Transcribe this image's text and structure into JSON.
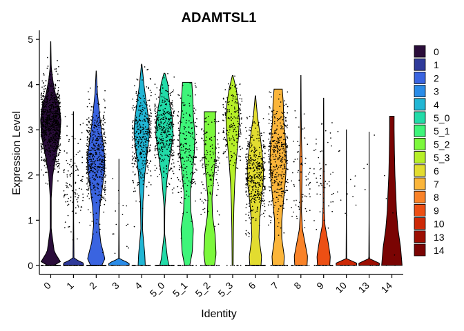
{
  "chart_data": {
    "type": "violin",
    "title": "ADAMTSL1",
    "xlabel": "Identity",
    "ylabel": "Expression Level",
    "ylim": [
      -0.2,
      5.2
    ],
    "yticks": [
      0,
      1,
      2,
      3,
      4,
      5
    ],
    "legend_position": "right",
    "show_points": true,
    "categories": [
      "0",
      "1",
      "2",
      "3",
      "4",
      "5_0",
      "5_1",
      "5_2",
      "5_3",
      "6",
      "7",
      "8",
      "9",
      "10",
      "13",
      "14"
    ],
    "colors": [
      "#2a0d3a",
      "#2f3a9a",
      "#3a64e0",
      "#2a8ce8",
      "#21b6d4",
      "#22dba8",
      "#3ef57a",
      "#7cf83c",
      "#b6ef28",
      "#e2dc30",
      "#fbb53a",
      "#f98228",
      "#ec4f14",
      "#cc2806",
      "#9c0e02",
      "#7a0403"
    ],
    "violins": [
      {
        "name": "0",
        "max": 4.95,
        "profile": [
          [
            0,
            0.3
          ],
          [
            0.08,
            0.95
          ],
          [
            0.3,
            0.35
          ],
          [
            0.8,
            0.05
          ],
          [
            1.5,
            0.05
          ],
          [
            2.0,
            0.2
          ],
          [
            2.4,
            0.5
          ],
          [
            2.8,
            0.85
          ],
          [
            3.2,
            1.0
          ],
          [
            3.5,
            0.85
          ],
          [
            3.8,
            0.45
          ],
          [
            4.1,
            0.2
          ],
          [
            4.4,
            0.05
          ],
          [
            4.95,
            0.01
          ]
        ],
        "n_points": 900,
        "point_mean": 3.15,
        "point_sd": 0.45,
        "zero_frac": 0.08
      },
      {
        "name": "1",
        "max": 3.4,
        "profile": [
          [
            0,
            1.0
          ],
          [
            0.05,
            1.0
          ],
          [
            0.15,
            0.05
          ],
          [
            1.0,
            0.02
          ],
          [
            2.0,
            0.02
          ],
          [
            3.4,
            0.01
          ]
        ],
        "n_points": 160,
        "point_mean": 1.9,
        "point_sd": 0.55,
        "zero_frac": 0.25
      },
      {
        "name": "2",
        "max": 4.3,
        "profile": [
          [
            0,
            0.55
          ],
          [
            0.15,
            0.85
          ],
          [
            0.5,
            0.45
          ],
          [
            0.9,
            0.25
          ],
          [
            1.3,
            0.35
          ],
          [
            1.8,
            0.65
          ],
          [
            2.2,
            0.85
          ],
          [
            2.6,
            0.75
          ],
          [
            3.0,
            0.5
          ],
          [
            3.4,
            0.3
          ],
          [
            3.8,
            0.12
          ],
          [
            4.3,
            0.01
          ]
        ],
        "n_points": 600,
        "point_mean": 2.35,
        "point_sd": 0.55,
        "zero_frac": 0.15
      },
      {
        "name": "3",
        "max": 2.35,
        "profile": [
          [
            0,
            1.0
          ],
          [
            0.05,
            1.0
          ],
          [
            0.15,
            0.03
          ],
          [
            1.0,
            0.01
          ],
          [
            2.35,
            0.005
          ]
        ],
        "n_points": 25,
        "point_mean": 1.1,
        "point_sd": 0.6,
        "zero_frac": 0.3
      },
      {
        "name": "4",
        "max": 4.45,
        "profile": [
          [
            0,
            0.35
          ],
          [
            0.25,
            0.3
          ],
          [
            0.8,
            0.08
          ],
          [
            1.4,
            0.12
          ],
          [
            2.0,
            0.3
          ],
          [
            2.5,
            0.55
          ],
          [
            2.9,
            0.75
          ],
          [
            3.2,
            0.7
          ],
          [
            3.6,
            0.45
          ],
          [
            4.0,
            0.22
          ],
          [
            4.45,
            0.02
          ]
        ],
        "n_points": 400,
        "point_mean": 2.85,
        "point_sd": 0.6,
        "zero_frac": 0.08
      },
      {
        "name": "5_0",
        "max": 4.25,
        "profile": [
          [
            0,
            0.45
          ],
          [
            0.15,
            0.3
          ],
          [
            0.7,
            0.02
          ],
          [
            1.3,
            0.04
          ],
          [
            1.9,
            0.25
          ],
          [
            2.4,
            0.55
          ],
          [
            2.9,
            0.85
          ],
          [
            3.3,
            0.75
          ],
          [
            3.7,
            0.45
          ],
          [
            4.0,
            0.35
          ],
          [
            4.25,
            0.05
          ]
        ],
        "n_points": 420,
        "point_mean": 3.0,
        "point_sd": 0.5,
        "zero_frac": 0.12
      },
      {
        "name": "5_1",
        "max": 4.05,
        "profile": [
          [
            0,
            0.25
          ],
          [
            0.3,
            0.5
          ],
          [
            0.8,
            0.6
          ],
          [
            1.2,
            0.35
          ],
          [
            1.6,
            0.3
          ],
          [
            2.0,
            0.5
          ],
          [
            2.5,
            0.7
          ],
          [
            2.9,
            0.75
          ],
          [
            3.3,
            0.6
          ],
          [
            3.7,
            0.55
          ],
          [
            4.05,
            0.45
          ]
        ],
        "n_points": 230,
        "point_mean": 2.6,
        "point_sd": 0.65,
        "zero_frac": 0.1
      },
      {
        "name": "5_2",
        "max": 3.4,
        "profile": [
          [
            0,
            0.45
          ],
          [
            0.25,
            0.6
          ],
          [
            0.7,
            0.5
          ],
          [
            1.1,
            0.25
          ],
          [
            1.5,
            0.2
          ],
          [
            2.0,
            0.4
          ],
          [
            2.4,
            0.55
          ],
          [
            2.8,
            0.55
          ],
          [
            3.1,
            0.55
          ],
          [
            3.4,
            0.55
          ]
        ],
        "n_points": 160,
        "point_mean": 2.3,
        "point_sd": 0.6,
        "zero_frac": 0.12
      },
      {
        "name": "5_3",
        "max": 4.2,
        "profile": [
          [
            0,
            0.05
          ],
          [
            0.3,
            0.06
          ],
          [
            0.8,
            0.08
          ],
          [
            1.3,
            0.12
          ],
          [
            1.8,
            0.2
          ],
          [
            2.3,
            0.35
          ],
          [
            2.8,
            0.55
          ],
          [
            3.2,
            0.65
          ],
          [
            3.6,
            0.55
          ],
          [
            3.9,
            0.35
          ],
          [
            4.2,
            0.03
          ]
        ],
        "n_points": 200,
        "point_mean": 3.15,
        "point_sd": 0.5,
        "zero_frac": 0.05
      },
      {
        "name": "6",
        "max": 3.75,
        "profile": [
          [
            0,
            0.55
          ],
          [
            0.2,
            0.6
          ],
          [
            0.6,
            0.35
          ],
          [
            1.0,
            0.4
          ],
          [
            1.4,
            0.55
          ],
          [
            1.8,
            0.75
          ],
          [
            2.1,
            0.8
          ],
          [
            2.5,
            0.65
          ],
          [
            2.9,
            0.45
          ],
          [
            3.3,
            0.2
          ],
          [
            3.75,
            0.02
          ]
        ],
        "n_points": 480,
        "point_mean": 2.0,
        "point_sd": 0.55,
        "zero_frac": 0.1
      },
      {
        "name": "7",
        "max": 3.9,
        "profile": [
          [
            0,
            0.55
          ],
          [
            0.2,
            0.6
          ],
          [
            0.6,
            0.35
          ],
          [
            1.0,
            0.35
          ],
          [
            1.5,
            0.55
          ],
          [
            2.0,
            0.75
          ],
          [
            2.4,
            0.8
          ],
          [
            2.8,
            0.7
          ],
          [
            3.2,
            0.55
          ],
          [
            3.6,
            0.5
          ],
          [
            3.9,
            0.4
          ]
        ],
        "n_points": 420,
        "point_mean": 2.35,
        "point_sd": 0.6,
        "zero_frac": 0.1
      },
      {
        "name": "8",
        "max": 4.2,
        "profile": [
          [
            0,
            0.6
          ],
          [
            0.2,
            0.65
          ],
          [
            0.5,
            0.4
          ],
          [
            0.8,
            0.15
          ],
          [
            1.2,
            0.06
          ],
          [
            1.8,
            0.1
          ],
          [
            2.3,
            0.12
          ],
          [
            2.8,
            0.06
          ],
          [
            3.4,
            0.03
          ],
          [
            4.2,
            0.01
          ]
        ],
        "n_points": 90,
        "point_mean": 2.0,
        "point_sd": 0.6,
        "zero_frac": 0.3
      },
      {
        "name": "9",
        "max": 3.7,
        "profile": [
          [
            0,
            0.6
          ],
          [
            0.2,
            0.65
          ],
          [
            0.5,
            0.45
          ],
          [
            0.9,
            0.12
          ],
          [
            1.3,
            0.05
          ],
          [
            1.9,
            0.05
          ],
          [
            2.5,
            0.03
          ],
          [
            3.0,
            0.02
          ],
          [
            3.7,
            0.01
          ]
        ],
        "n_points": 85,
        "point_mean": 1.9,
        "point_sd": 0.65,
        "zero_frac": 0.3
      },
      {
        "name": "10",
        "max": 3.0,
        "profile": [
          [
            0,
            1.0
          ],
          [
            0.05,
            1.0
          ],
          [
            0.15,
            0.03
          ],
          [
            1.0,
            0.01
          ],
          [
            3.0,
            0.005
          ]
        ],
        "n_points": 25,
        "point_mean": 1.8,
        "point_sd": 0.6,
        "zero_frac": 0.3
      },
      {
        "name": "13",
        "max": 2.95,
        "profile": [
          [
            0,
            1.0
          ],
          [
            0.05,
            1.0
          ],
          [
            0.15,
            0.03
          ],
          [
            1.0,
            0.01
          ],
          [
            2.95,
            0.005
          ]
        ],
        "n_points": 12,
        "point_mean": 2.2,
        "point_sd": 0.5,
        "zero_frac": 0.3
      },
      {
        "name": "14",
        "max": 3.3,
        "profile": [
          [
            0,
            1.0
          ],
          [
            0.4,
            0.85
          ],
          [
            0.8,
            0.6
          ],
          [
            1.2,
            0.45
          ],
          [
            1.6,
            0.38
          ],
          [
            2.0,
            0.3
          ],
          [
            2.5,
            0.25
          ],
          [
            3.0,
            0.22
          ],
          [
            3.3,
            0.22
          ]
        ],
        "n_points": 6,
        "point_mean": 1.5,
        "point_sd": 1.0,
        "zero_frac": 0.4
      }
    ]
  }
}
